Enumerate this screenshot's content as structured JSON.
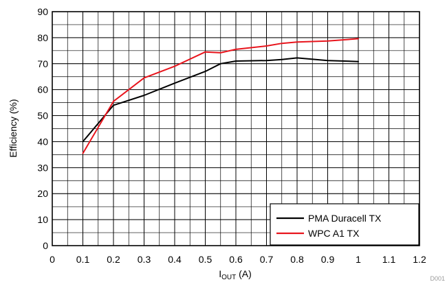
{
  "chart_data": {
    "type": "line",
    "xlabel": "I",
    "xlabel_sub": "OUT",
    "xlabel_unit": " (A)",
    "ylabel": "Efficiency (%)",
    "xlim": [
      0,
      1.2
    ],
    "ylim": [
      0,
      90
    ],
    "x_ticks": [
      0,
      0.1,
      0.2,
      0.3,
      0.4,
      0.5,
      0.6,
      0.7,
      0.8,
      0.9,
      1,
      1.1,
      1.2
    ],
    "y_ticks": [
      0,
      10,
      20,
      30,
      40,
      50,
      60,
      70,
      80,
      90
    ],
    "x_minor_step": 0.05,
    "y_minor_step": 5,
    "grid": true,
    "legend_position": "bottom-right",
    "code": "D001",
    "series": [
      {
        "name": "PMA Duracell TX",
        "color": "#000000",
        "x": [
          0.1,
          0.2,
          0.3,
          0.4,
          0.5,
          0.55,
          0.6,
          0.7,
          0.75,
          0.8,
          0.9,
          1.0
        ],
        "y": [
          40,
          54,
          57.8,
          62.5,
          67,
          70,
          71,
          71.2,
          71.6,
          72.2,
          71.2,
          70.8
        ]
      },
      {
        "name": "WPC A1 TX",
        "color": "#e8141c",
        "x": [
          0.1,
          0.2,
          0.3,
          0.4,
          0.5,
          0.55,
          0.6,
          0.7,
          0.75,
          0.8,
          0.9,
          1.0
        ],
        "y": [
          35.5,
          55.5,
          64.5,
          69,
          74.5,
          74.2,
          75.5,
          76.8,
          77.8,
          78.3,
          78.7,
          79.6
        ]
      }
    ]
  }
}
